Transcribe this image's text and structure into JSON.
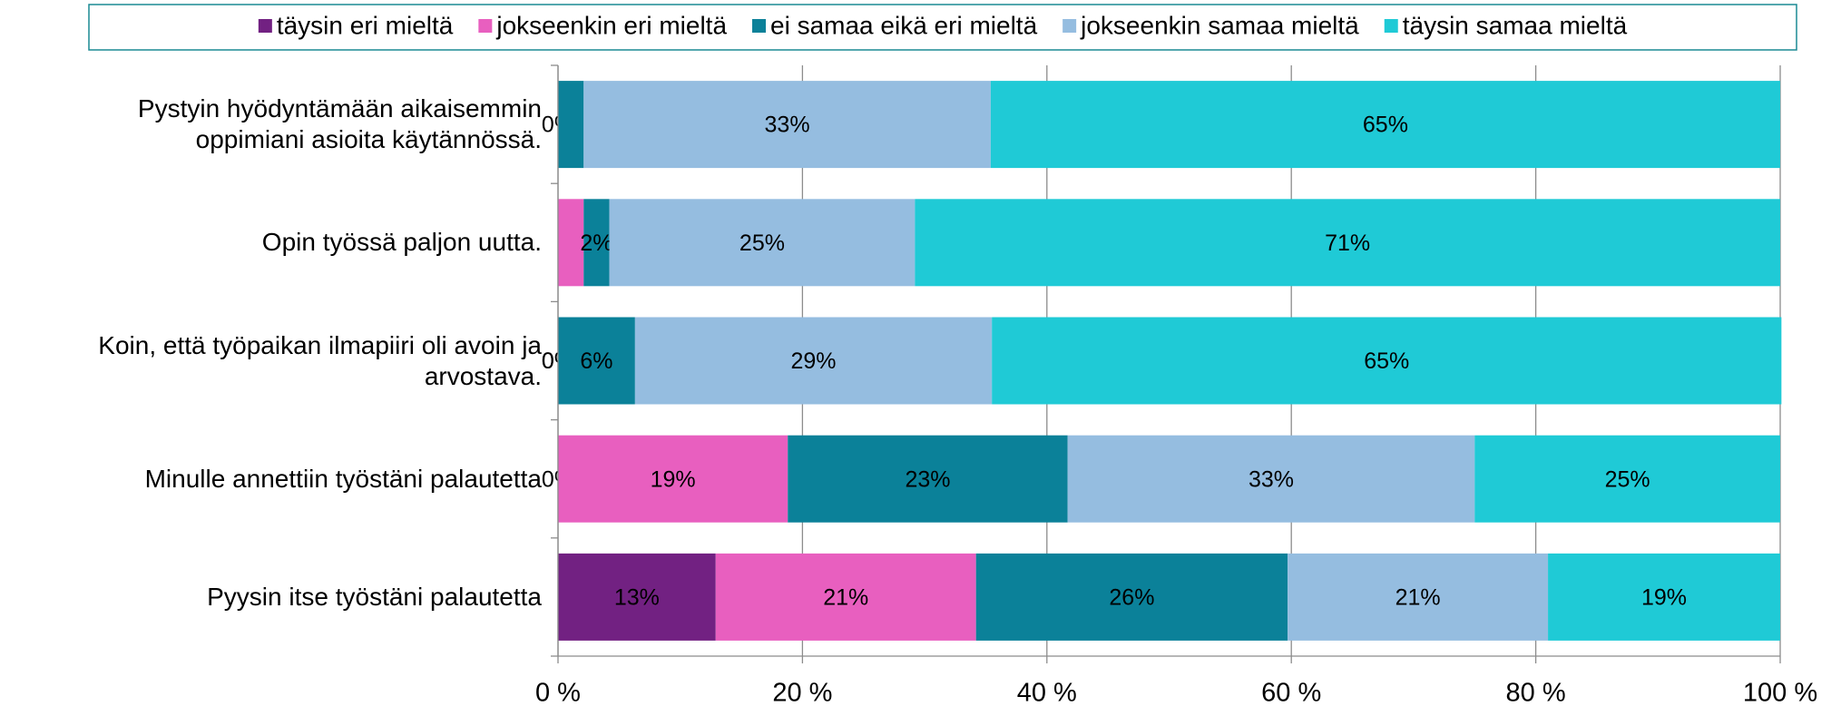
{
  "chart_data": {
    "type": "stacked_barh",
    "categories": [
      "Pystyin hyödyntämään aikaisemmin\noppimiani asioita käytännössä.",
      "Opin työssä paljon uutta.",
      "Koin, että työpaikan ilmapiiri oli avoin ja\narvostava.",
      "Minulle annettiin työstäni palautetta",
      "Pyysin itse työstäni palautetta"
    ],
    "series": [
      {
        "name": "täysin eri mieltä",
        "color": "#722182",
        "values": [
          0,
          0,
          0,
          0,
          12.9
        ],
        "value_labels": [
          null,
          null,
          "0%",
          "0%",
          "13%"
        ]
      },
      {
        "name": "jokseenkin eri mieltä",
        "color": "#e85fbf",
        "values": [
          0,
          2.1,
          0,
          18.8,
          21.3
        ],
        "value_labels": [
          "0%",
          null,
          "0%",
          "19%",
          "21%"
        ]
      },
      {
        "name": "ei samaa eikä eri mieltä",
        "color": "#0b8199",
        "values": [
          2.1,
          2.1,
          6.3,
          22.9,
          25.5
        ],
        "value_labels": [
          null,
          "2%",
          "6%",
          "23%",
          "26%"
        ]
      },
      {
        "name": "jokseenkin samaa mieltä",
        "color": "#95bde0",
        "values": [
          33.3,
          25,
          29.2,
          33.3,
          21.3
        ],
        "value_labels": [
          "33%",
          "25%",
          "29%",
          "33%",
          "21%"
        ]
      },
      {
        "name": "täysin samaa mieltä",
        "color": "#1fcad6",
        "values": [
          64.6,
          70.8,
          64.6,
          25,
          19
        ],
        "value_labels": [
          "65%",
          "71%",
          "65%",
          "25%",
          "19%"
        ]
      }
    ],
    "xlim": [
      0,
      100
    ],
    "xticks": [
      {
        "value": 0,
        "label": "0 %"
      },
      {
        "value": 20,
        "label": "20 %"
      },
      {
        "value": 40,
        "label": "40 %"
      },
      {
        "value": 60,
        "label": "60 %"
      },
      {
        "value": 80,
        "label": "80 %"
      },
      {
        "value": 100,
        "label": "100 %"
      }
    ],
    "grid": true,
    "legend": "top"
  }
}
